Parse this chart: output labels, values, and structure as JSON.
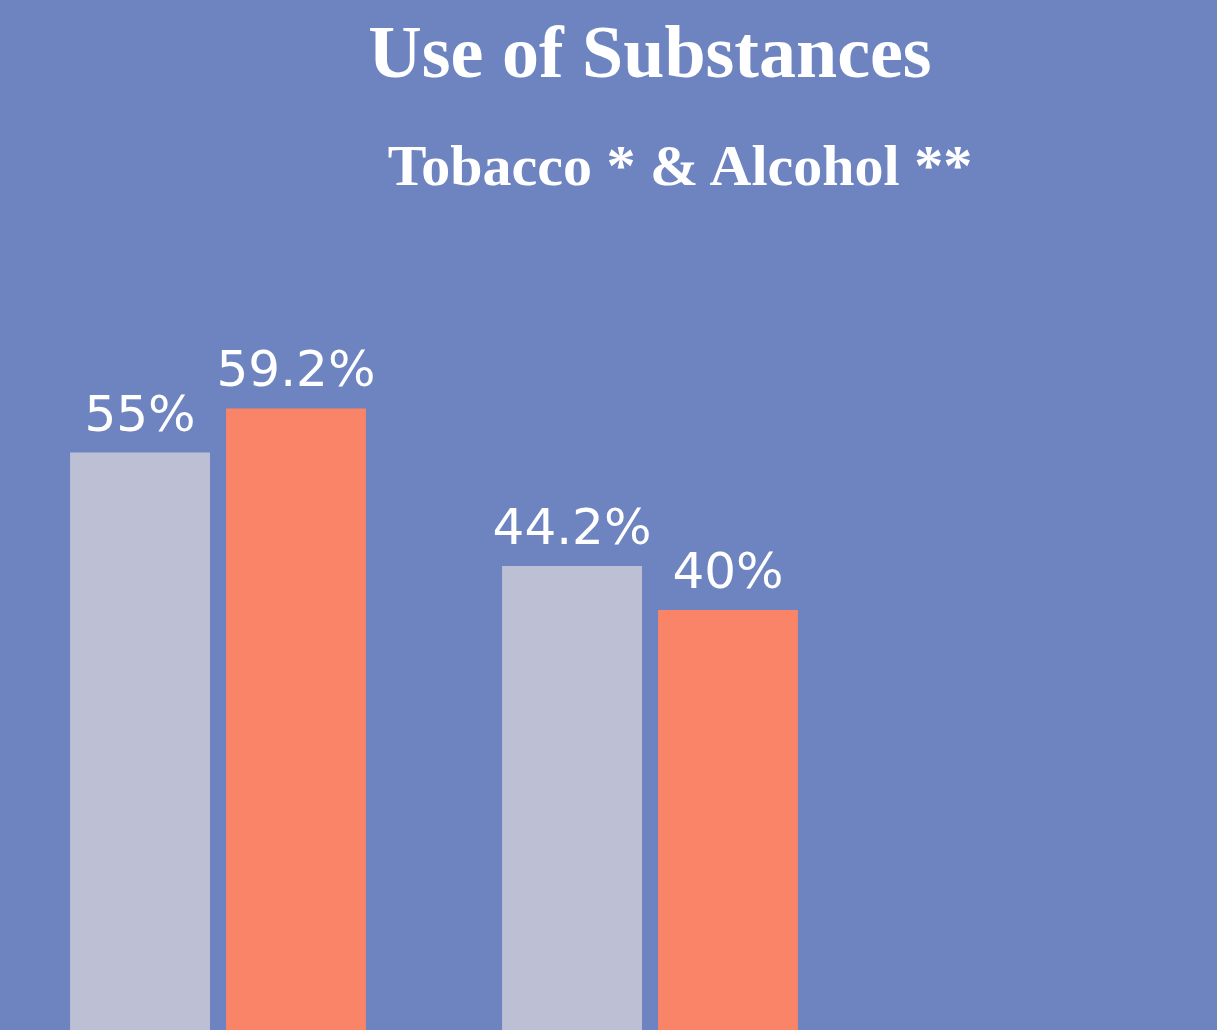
{
  "chart_data": {
    "type": "bar",
    "title": "Use of Substances",
    "subtitle": "Tobacco * & Alcohol **",
    "categories": [
      null,
      null
    ],
    "series": [
      {
        "color": "#bdbfd4",
        "values": [
          55,
          44.2
        ],
        "value_labels": [
          "55%",
          "44.2%"
        ]
      },
      {
        "color": "#fa8467",
        "values": [
          59.2,
          40
        ],
        "value_labels": [
          "59.2%",
          "40%"
        ]
      }
    ],
    "legend": false
  }
}
